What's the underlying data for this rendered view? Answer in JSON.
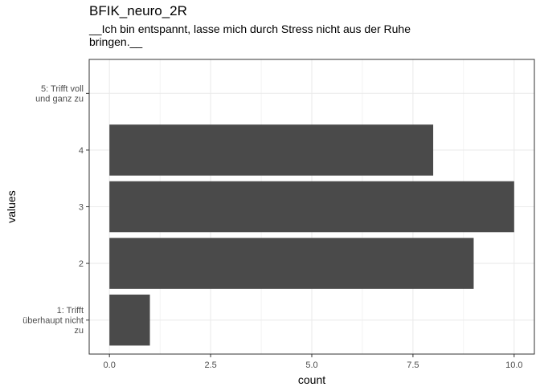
{
  "chart_data": {
    "type": "bar",
    "orientation": "horizontal",
    "title": "BFIK_neuro_2R",
    "subtitle": "__Ich bin entspannt, lasse mich durch Stress nicht aus der Ruhe bringen.__",
    "xlabel": "count",
    "ylabel": "values",
    "categories": [
      "1: Trifft überhaupt nicht zu",
      "2",
      "3",
      "4",
      "5: Trifft voll und ganz zu"
    ],
    "category_label_lines": [
      [
        "1: Trifft",
        "überhaupt nicht",
        "zu"
      ],
      [
        "2"
      ],
      [
        "3"
      ],
      [
        "4"
      ],
      [
        "5: Trifft voll",
        "und ganz zu"
      ]
    ],
    "values": [
      1,
      9,
      10,
      8,
      0
    ],
    "xlim": [
      -0.5,
      10.5
    ],
    "xticks": [
      0,
      2.5,
      5,
      7.5,
      10
    ],
    "xtick_labels": [
      "0.0",
      "2.5",
      "5.0",
      "7.5",
      "10.0"
    ],
    "grid": true,
    "bar_color": "#4a4a4a",
    "grid_color": "#ebebeb",
    "panel_border_color": "#333333"
  }
}
